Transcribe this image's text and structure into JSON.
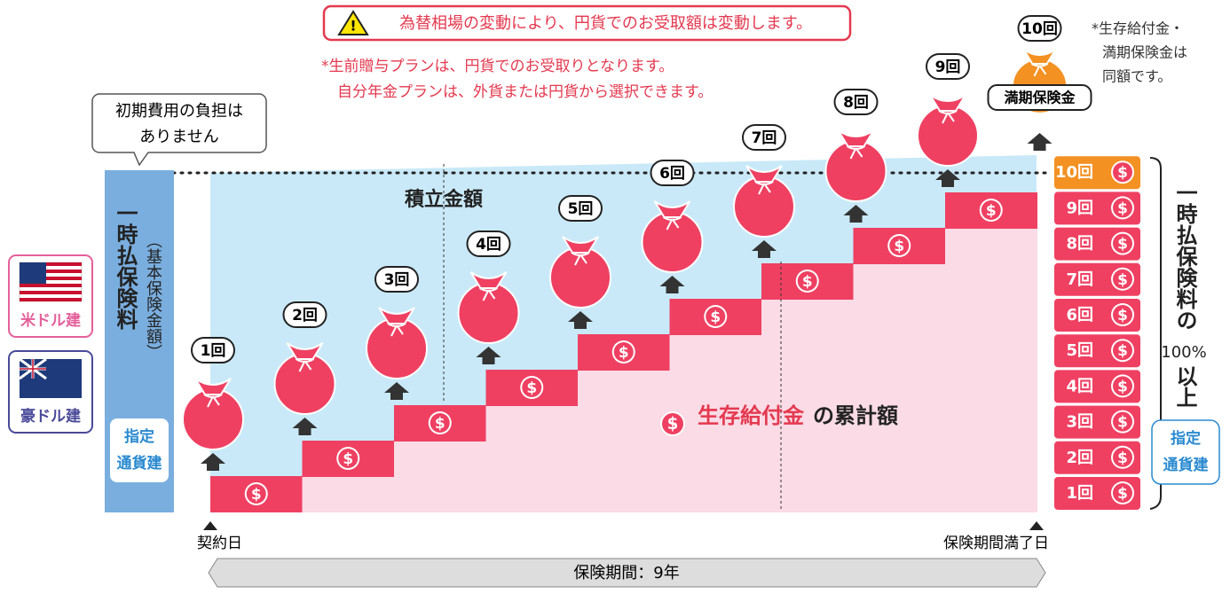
{
  "warning": "為替相場の変動により、円貨でのお受取額は変動します。",
  "notes": [
    "*生前贈与プランは、円貨でのお受取りとなります。",
    "自分年金プランは、外貨または円貨から選択できます。"
  ],
  "side_note": [
    "*生存給付金・",
    "満期保険金は",
    "同額です。"
  ],
  "initial_cost_bubble": [
    "初期費用の負担は",
    "ありません"
  ],
  "premium_column": {
    "title": "一時払保険料",
    "subtitle": "（基本保険金額）",
    "currency": [
      "指定",
      "通貨建"
    ]
  },
  "currencies": [
    "米ドル建",
    "豪ドル建"
  ],
  "payments": [
    "1回",
    "2回",
    "3回",
    "4回",
    "5回",
    "6回",
    "7回",
    "8回",
    "9回",
    "10回"
  ],
  "maturity": "満期保険金",
  "accumulation": "積立金額",
  "cumulative": {
    "highlight": "生存給付金",
    "text": "の累計額"
  },
  "coin_symbol": "$",
  "right_note": {
    "top": "一時払保険料の",
    "percent": "100%",
    "bottom": "以上"
  },
  "right_currency": [
    "指定",
    "通貨建"
  ],
  "start": "契約日",
  "end": "保険期間満了日",
  "period": "保険期間：9年"
}
